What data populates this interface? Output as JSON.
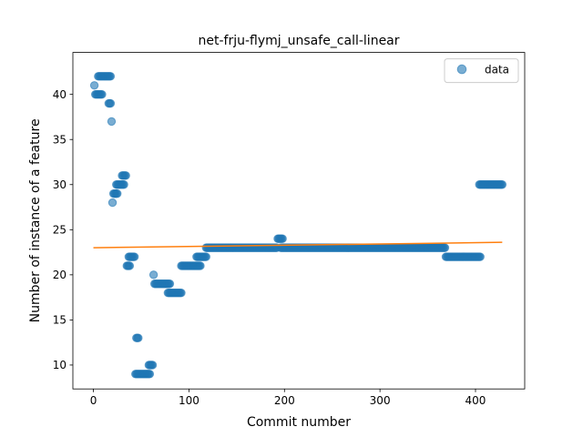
{
  "chart_data": {
    "type": "scatter",
    "title": "net-frju-flymj_unsafe_call-linear",
    "xlabel": "Commit number",
    "ylabel": "Number of instance of a feature",
    "xlim": [
      -21.5,
      451.5
    ],
    "ylim": [
      7.35,
      44.65
    ],
    "xticks": [
      0,
      100,
      200,
      300,
      400
    ],
    "yticks": [
      10,
      15,
      20,
      25,
      30,
      35,
      40
    ],
    "xtick_labels": [
      "0",
      "100",
      "200",
      "300",
      "400"
    ],
    "ytick_labels": [
      "10",
      "15",
      "20",
      "25",
      "30",
      "35",
      "40"
    ],
    "grid": false,
    "legend": {
      "position": "top-right",
      "entries": [
        "data"
      ]
    },
    "colors": {
      "data": "#1f77b4",
      "fit": "#ff7f0e"
    },
    "segments": [
      {
        "x_start": 1,
        "x_end": 1,
        "y": 41
      },
      {
        "x_start": 2,
        "x_end": 9,
        "y": 40
      },
      {
        "x_start": 5,
        "x_end": 18,
        "y": 42
      },
      {
        "x_start": 16,
        "x_end": 18,
        "y": 39
      },
      {
        "x_start": 19,
        "x_end": 19,
        "y": 37
      },
      {
        "x_start": 20,
        "x_end": 20,
        "y": 28
      },
      {
        "x_start": 21,
        "x_end": 25,
        "y": 29
      },
      {
        "x_start": 24,
        "x_end": 32,
        "y": 30
      },
      {
        "x_start": 30,
        "x_end": 34,
        "y": 31
      },
      {
        "x_start": 35,
        "x_end": 38,
        "y": 21
      },
      {
        "x_start": 37,
        "x_end": 43,
        "y": 22
      },
      {
        "x_start": 44,
        "x_end": 45,
        "y": 9
      },
      {
        "x_start": 45,
        "x_end": 47,
        "y": 13
      },
      {
        "x_start": 46,
        "x_end": 59,
        "y": 9
      },
      {
        "x_start": 58,
        "x_end": 62,
        "y": 10
      },
      {
        "x_start": 63,
        "x_end": 63,
        "y": 20
      },
      {
        "x_start": 64,
        "x_end": 80,
        "y": 19
      },
      {
        "x_start": 78,
        "x_end": 92,
        "y": 18
      },
      {
        "x_start": 92,
        "x_end": 112,
        "y": 21
      },
      {
        "x_start": 108,
        "x_end": 118,
        "y": 22
      },
      {
        "x_start": 118,
        "x_end": 192,
        "y": 23
      },
      {
        "x_start": 193,
        "x_end": 198,
        "y": 24
      },
      {
        "x_start": 196,
        "x_end": 368,
        "y": 23
      },
      {
        "x_start": 369,
        "x_end": 405,
        "y": 22
      },
      {
        "x_start": 404,
        "x_end": 428,
        "y": 30
      }
    ],
    "fit_line": {
      "x": [
        0,
        428
      ],
      "y": [
        23.0,
        23.6
      ]
    }
  }
}
